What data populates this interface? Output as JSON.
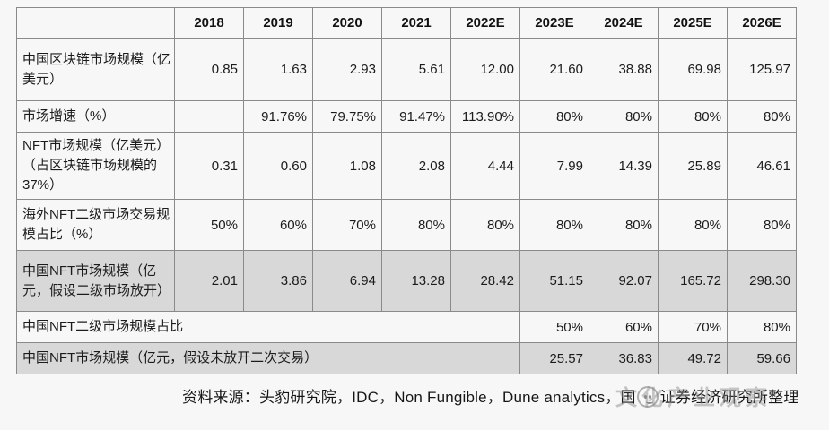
{
  "table": {
    "corner_label": "",
    "columns": [
      "2018",
      "2019",
      "2020",
      "2021",
      "2022E",
      "2023E",
      "2024E",
      "2025E",
      "2026E"
    ],
    "rows": [
      {
        "label": "中国区块链市场规模（亿美元）",
        "shaded": false,
        "merged": false,
        "values": [
          "0.85",
          "1.63",
          "2.93",
          "5.61",
          "12.00",
          "21.60",
          "38.88",
          "69.98",
          "125.97"
        ]
      },
      {
        "label": "市场增速（%）",
        "shaded": false,
        "merged": false,
        "values": [
          "",
          "91.76%",
          "79.75%",
          "91.47%",
          "113.90%",
          "80%",
          "80%",
          "80%",
          "80%"
        ]
      },
      {
        "label": "NFT市场规模（亿美元）（占区块链市场规模的37%）",
        "shaded": false,
        "merged": false,
        "values": [
          "0.31",
          "0.60",
          "1.08",
          "2.08",
          "4.44",
          "7.99",
          "14.39",
          "25.89",
          "46.61"
        ]
      },
      {
        "label": "海外NFT二级市场交易规模占比（%）",
        "shaded": false,
        "merged": false,
        "values": [
          "50%",
          "60%",
          "70%",
          "80%",
          "80%",
          "80%",
          "80%",
          "80%",
          "80%"
        ]
      },
      {
        "label": "中国NFT市场规模（亿元，假设二级市场放开）",
        "shaded": true,
        "merged": false,
        "values": [
          "2.01",
          "3.86",
          "6.94",
          "13.28",
          "28.42",
          "51.15",
          "92.07",
          "165.72",
          "298.30"
        ]
      },
      {
        "label": "中国NFT二级市场规模占比",
        "shaded": false,
        "merged": true,
        "values": [
          "50%",
          "60%",
          "70%",
          "80%"
        ]
      },
      {
        "label": "中国NFT市场规模（亿元，假设未放开二次交易）",
        "shaded": true,
        "merged": true,
        "values": [
          "25.57",
          "36.83",
          "49.72",
          "59.66"
        ]
      }
    ]
  },
  "footer": {
    "source_prefix": "资料来源：头豹研究院，IDC，Non Fungible，Dune analytics，国",
    "source_suffix": "证券经济研究所整理",
    "watermark": "文化产业观察"
  },
  "colors": {
    "background": "#f7f7f7",
    "border": "#8a8a8a",
    "row_shade": "#d8d8d8",
    "text": "#1b1b1b",
    "watermark_gray": "#8c8c8c"
  }
}
